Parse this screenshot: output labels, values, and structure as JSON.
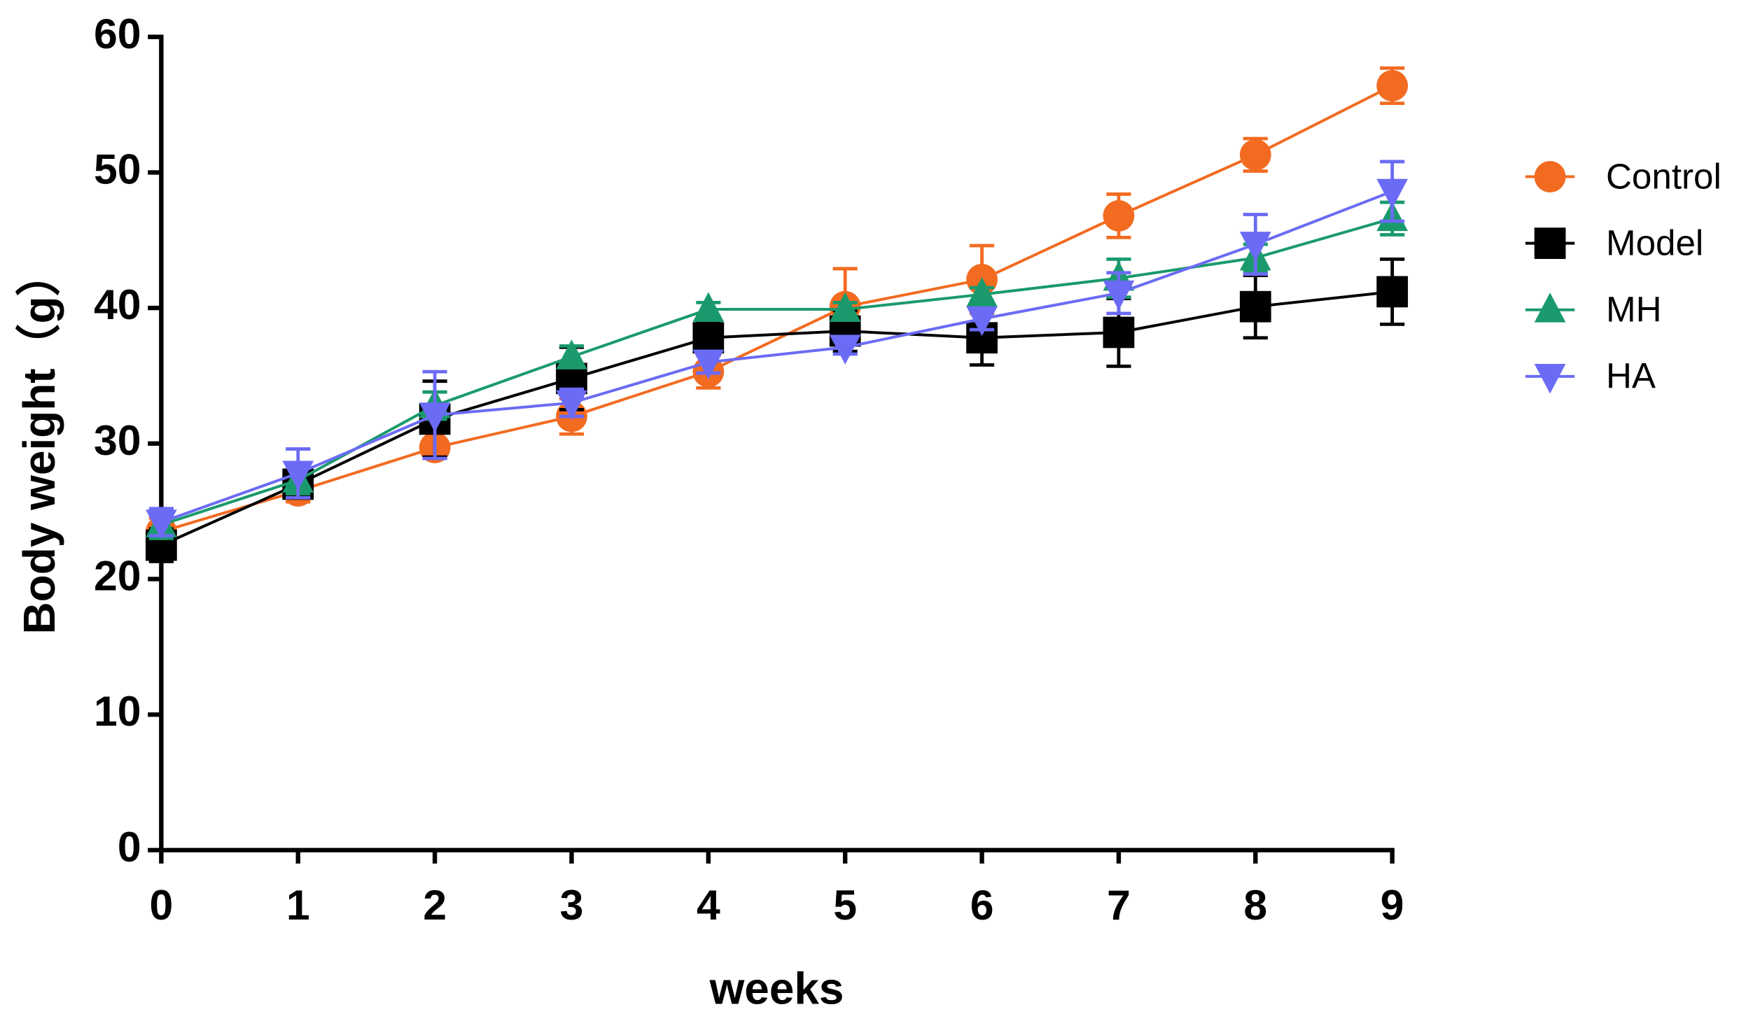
{
  "chart_data": {
    "type": "line",
    "x_label": "weeks",
    "y_label": "Body weight（g）",
    "x": [
      0,
      1,
      2,
      3,
      4,
      5,
      6,
      7,
      8,
      9
    ],
    "xlim": [
      0,
      9
    ],
    "xticks": [
      0,
      1,
      2,
      3,
      4,
      5,
      6,
      7,
      8,
      9
    ],
    "ylim": [
      0,
      60
    ],
    "yticks": [
      0,
      10,
      20,
      30,
      40,
      50,
      60
    ],
    "grid": false,
    "legend": "right",
    "series": [
      {
        "name": "Control",
        "color": "#f26b21",
        "marker": "circle",
        "values": [
          23.5,
          26.5,
          29.7,
          32.0,
          35.3,
          40.1,
          42.1,
          46.8,
          51.3,
          56.4
        ],
        "errors": [
          1.0,
          0.8,
          0.6,
          1.3,
          1.2,
          2.8,
          2.5,
          1.6,
          1.2,
          1.3
        ]
      },
      {
        "name": "Model",
        "color": "#000000",
        "marker": "square",
        "values": [
          22.5,
          27.0,
          31.8,
          34.8,
          37.8,
          38.3,
          37.8,
          38.2,
          40.1,
          41.2
        ],
        "errors": [
          1.2,
          1.0,
          2.8,
          2.3,
          1.2,
          1.5,
          2.0,
          2.5,
          2.3,
          2.4
        ]
      },
      {
        "name": "MH",
        "color": "#1a9a6c",
        "marker": "triangle",
        "values": [
          24.0,
          27.3,
          32.8,
          36.4,
          39.9,
          39.9,
          41.0,
          42.2,
          43.7,
          46.6
        ],
        "errors": [
          1.0,
          1.0,
          1.0,
          0.8,
          0.5,
          0.5,
          0.5,
          1.4,
          1.0,
          1.2
        ]
      },
      {
        "name": "HA",
        "color": "#6b6bf5",
        "marker": "triangle-down",
        "values": [
          24.2,
          27.8,
          32.1,
          33.0,
          36.0,
          37.1,
          39.2,
          41.1,
          44.7,
          48.6
        ],
        "errors": [
          1.0,
          1.8,
          3.2,
          1.0,
          0.8,
          0.5,
          0.8,
          1.5,
          2.2,
          2.2
        ]
      }
    ]
  }
}
